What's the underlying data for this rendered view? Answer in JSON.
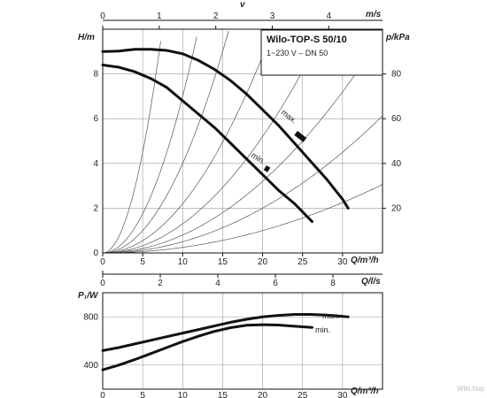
{
  "chart_data": [
    {
      "type": "line",
      "title": "Wilo-TOP-S 50/10",
      "subtitle": "1~230 V – DN 50",
      "xlabel": "Q/m³/h",
      "ylabel": "H/m",
      "y2label": "p/kPa",
      "x2label": "m/s",
      "x2name": "v",
      "xlim": [
        0,
        35
      ],
      "ylim": [
        0,
        10
      ],
      "y2lim": [
        0,
        100
      ],
      "x_ticks": [
        "0",
        "5",
        "10",
        "15",
        "20",
        "25",
        "30"
      ],
      "y_ticks": [
        "0",
        "2",
        "4",
        "6",
        "8"
      ],
      "y2_ticks": [
        "20",
        "40",
        "60",
        "80"
      ],
      "x2_ticks": [
        "0",
        "1",
        "2",
        "3",
        "4"
      ],
      "series": [
        {
          "name": "max.",
          "x": [
            0,
            2,
            4,
            6,
            8,
            10,
            12,
            14,
            16,
            18,
            20,
            22,
            24,
            26,
            28,
            30,
            30.7
          ],
          "y": [
            9.0,
            9.02,
            9.1,
            9.1,
            9.05,
            8.9,
            8.6,
            8.2,
            7.7,
            7.1,
            6.4,
            5.7,
            4.9,
            4.1,
            3.3,
            2.4,
            2.0
          ]
        },
        {
          "name": "min.",
          "x": [
            0,
            2,
            4,
            6,
            8,
            10,
            12,
            14,
            16,
            18,
            20,
            22,
            24,
            26.2
          ],
          "y": [
            8.4,
            8.3,
            8.1,
            7.8,
            7.4,
            6.8,
            6.2,
            5.6,
            4.9,
            4.2,
            3.5,
            2.8,
            2.2,
            1.4
          ]
        }
      ],
      "system_curve_k": [
        0.18,
        0.07,
        0.04,
        0.022,
        0.013,
        0.008,
        0.005,
        0.0025
      ]
    },
    {
      "type": "line",
      "xlabel": "Q/l/s",
      "xlim": [
        0,
        35
      ],
      "x_ticks": [
        "0",
        "2",
        "4",
        "6",
        "8"
      ],
      "x_tick_values": [
        0,
        7.2,
        14.4,
        21.6,
        28.8
      ]
    },
    {
      "type": "line",
      "xlabel": "Q/m³/h",
      "ylabel": "P₁/W",
      "xlim": [
        0,
        35
      ],
      "ylim": [
        200,
        1000
      ],
      "x_ticks": [
        "0",
        "5",
        "10",
        "15",
        "20",
        "25",
        "30"
      ],
      "y_ticks": [
        "400",
        "800"
      ],
      "series": [
        {
          "name": "max.",
          "x": [
            0,
            2,
            4,
            6,
            8,
            10,
            12,
            14,
            16,
            18,
            20,
            22,
            24,
            26,
            28,
            30.7
          ],
          "y": [
            520,
            545,
            575,
            605,
            635,
            665,
            695,
            725,
            755,
            780,
            800,
            812,
            820,
            820,
            815,
            800
          ]
        },
        {
          "name": "min.",
          "x": [
            0,
            2,
            4,
            6,
            8,
            10,
            12,
            14,
            16,
            18,
            20,
            22,
            24,
            26.2
          ],
          "y": [
            360,
            400,
            445,
            495,
            545,
            595,
            640,
            680,
            710,
            730,
            735,
            732,
            722,
            712
          ]
        }
      ]
    }
  ],
  "watermark": "Wilo.hop"
}
